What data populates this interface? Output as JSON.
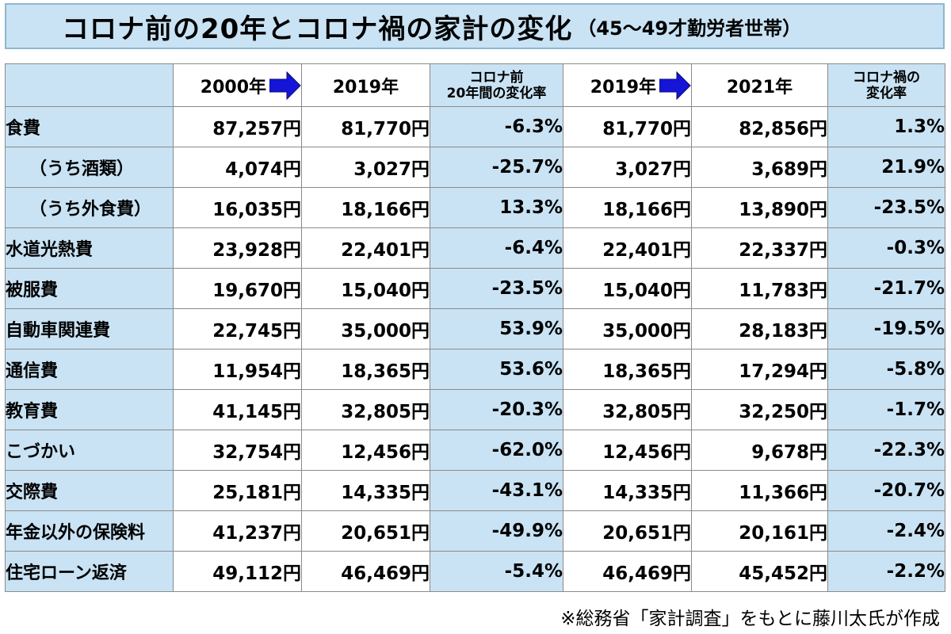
{
  "title": {
    "main": "コロナ前の20年とコロナ禍の家計の変化",
    "sub": "（45～49才勤労者世帯）"
  },
  "header": {
    "col_2000": "2000年",
    "col_2019a": "2019年",
    "col_rate1": [
      "コロナ前",
      "20年間の変化率"
    ],
    "col_2019b": "2019年",
    "col_2021": "2021年",
    "col_rate2": [
      "コロナ禍の",
      "変化率"
    ]
  },
  "rows": [
    {
      "label": "食費",
      "indent": false,
      "v2000": "87,257円",
      "v2019": "81,770円",
      "r1": "-6.3%",
      "v2019b": "81,770円",
      "v2021": "82,856円",
      "r2": "1.3%"
    },
    {
      "label": "（うち酒類）",
      "indent": true,
      "v2000": "4,074円",
      "v2019": "3,027円",
      "r1": "-25.7%",
      "v2019b": "3,027円",
      "v2021": "3,689円",
      "r2": "21.9%"
    },
    {
      "label": "（うち外食費）",
      "indent": true,
      "v2000": "16,035円",
      "v2019": "18,166円",
      "r1": "13.3%",
      "v2019b": "18,166円",
      "v2021": "13,890円",
      "r2": "-23.5%"
    },
    {
      "label": "水道光熱費",
      "indent": false,
      "v2000": "23,928円",
      "v2019": "22,401円",
      "r1": "-6.4%",
      "v2019b": "22,401円",
      "v2021": "22,337円",
      "r2": "-0.3%"
    },
    {
      "label": "被服費",
      "indent": false,
      "v2000": "19,670円",
      "v2019": "15,040円",
      "r1": "-23.5%",
      "v2019b": "15,040円",
      "v2021": "11,783円",
      "r2": "-21.7%"
    },
    {
      "label": "自動車関連費",
      "indent": false,
      "v2000": "22,745円",
      "v2019": "35,000円",
      "r1": "53.9%",
      "v2019b": "35,000円",
      "v2021": "28,183円",
      "r2": "-19.5%"
    },
    {
      "label": "通信費",
      "indent": false,
      "v2000": "11,954円",
      "v2019": "18,365円",
      "r1": "53.6%",
      "v2019b": "18,365円",
      "v2021": "17,294円",
      "r2": "-5.8%"
    },
    {
      "label": "教育費",
      "indent": false,
      "v2000": "41,145円",
      "v2019": "32,805円",
      "r1": "-20.3%",
      "v2019b": "32,805円",
      "v2021": "32,250円",
      "r2": "-1.7%"
    },
    {
      "label": "こづかい",
      "indent": false,
      "v2000": "32,754円",
      "v2019": "12,456円",
      "r1": "-62.0%",
      "v2019b": "12,456円",
      "v2021": "9,678円",
      "r2": "-22.3%"
    },
    {
      "label": "交際費",
      "indent": false,
      "v2000": "25,181円",
      "v2019": "14,335円",
      "r1": "-43.1%",
      "v2019b": "14,335円",
      "v2021": "11,366円",
      "r2": "-20.7%"
    },
    {
      "label": "年金以外の保険料",
      "indent": false,
      "v2000": "41,237円",
      "v2019": "20,651円",
      "r1": "-49.9%",
      "v2019b": "20,651円",
      "v2021": "20,161円",
      "r2": "-2.4%"
    },
    {
      "label": "住宅ローン返済",
      "indent": false,
      "v2000": "49,112円",
      "v2019": "46,469円",
      "r1": "-5.4%",
      "v2019b": "46,469円",
      "v2021": "45,452円",
      "r2": "-2.2%"
    }
  ],
  "footnote": "※総務省「家計調査」をもとに藤川太氏が作成",
  "colors": {
    "header_blue": "#c9e3f4",
    "arrow_blue": "#1515d8"
  },
  "icons": {
    "arrow": "right-arrow-icon"
  }
}
